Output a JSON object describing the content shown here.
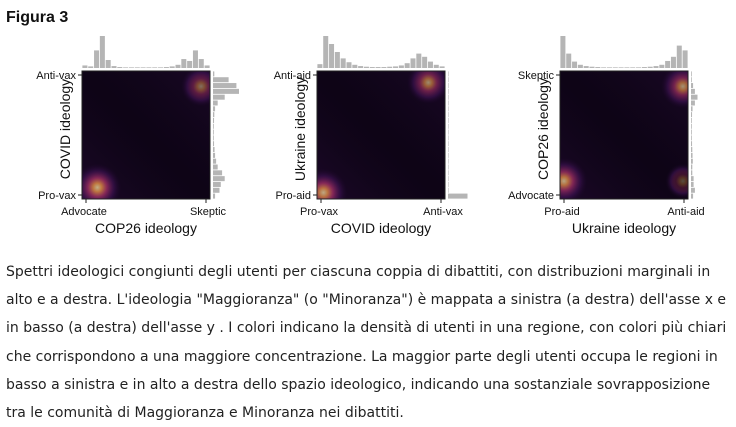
{
  "figure": {
    "title": "Figura 3",
    "caption_lines": [
      "Spettri ideologici congiunti degli utenti per ciascuna coppia di dibattiti, con distribuzioni marginali in",
      "alto e a destra. L'ideologia \"Maggioranza\" (o \"Minoranza\") è mappata a sinistra (a destra) dell'asse x e",
      "in basso (a destra) dell'asse y . I colori indicano la densità di utenti in una regione, con colori più chiari",
      "che corrispondono a una maggiore concentrazione. La maggior parte degli utenti occupa le regioni in",
      "basso a sinistra e in alto a destra dello spazio ideologico, indicando una sostanziale sovrapposizione",
      "tra le comunità di Maggioranza e Minoranza nei dibattiti."
    ]
  },
  "chart_data": [
    {
      "type": "heatmap",
      "xlabel": "COP26 ideology",
      "ylabel": "COVID ideology",
      "x_ticks": [
        "Advocate",
        "Skeptic"
      ],
      "y_ticks": [
        "Pro-vax",
        "Anti-vax"
      ],
      "xlim": [
        0,
        1
      ],
      "ylim": [
        0,
        1
      ],
      "hotspots": [
        {
          "x": 0.12,
          "y": 0.09,
          "intensity": 1.0
        },
        {
          "x": 0.93,
          "y": 0.88,
          "intensity": 0.6
        }
      ],
      "marginal_top": [
        0.08,
        0.05,
        0.55,
        1.0,
        0.25,
        0.06,
        0.03,
        0.02,
        0.02,
        0.02,
        0.02,
        0.02,
        0.02,
        0.02,
        0.03,
        0.05,
        0.1,
        0.28,
        0.22,
        0.55,
        0.28,
        0.08
      ],
      "marginal_right": [
        0.05,
        0.6,
        0.9,
        1.0,
        0.45,
        0.18,
        0.08,
        0.05,
        0.04,
        0.03,
        0.03,
        0.03,
        0.04,
        0.06,
        0.08,
        0.12,
        0.18,
        0.35,
        0.45,
        0.3,
        0.25,
        0.08
      ]
    },
    {
      "type": "heatmap",
      "xlabel": "COVID ideology",
      "ylabel": "Ukraine ideology",
      "x_ticks": [
        "Pro-vax",
        "Anti-vax"
      ],
      "y_ticks": [
        "Pro-aid",
        "Anti-aid"
      ],
      "xlim": [
        0,
        1
      ],
      "ylim": [
        0,
        1
      ],
      "hotspots": [
        {
          "x": 0.05,
          "y": 0.05,
          "intensity": 1.0
        },
        {
          "x": 0.87,
          "y": 0.91,
          "intensity": 0.75
        }
      ],
      "marginal_top": [
        0.12,
        1.0,
        0.75,
        0.5,
        0.3,
        0.18,
        0.1,
        0.06,
        0.04,
        0.03,
        0.03,
        0.03,
        0.04,
        0.05,
        0.08,
        0.15,
        0.3,
        0.45,
        0.35,
        0.2,
        0.1,
        0.05
      ],
      "marginal_right": [
        0.02,
        0.02,
        0.02,
        0.02,
        0.02,
        0.02,
        0.02,
        0.02,
        0.02,
        0.02,
        0.02,
        0.02,
        0.02,
        0.02,
        0.02,
        0.02,
        0.02,
        0.02,
        0.02,
        0.02,
        0.02,
        0.75
      ]
    },
    {
      "type": "heatmap",
      "xlabel": "Ukraine ideology",
      "ylabel": "COP26 ideology",
      "x_ticks": [
        "Pro-aid",
        "Anti-aid"
      ],
      "y_ticks": [
        "Advocate",
        "Skeptic"
      ],
      "xlim": [
        0,
        1
      ],
      "ylim": [
        0,
        1
      ],
      "hotspots": [
        {
          "x": 0.03,
          "y": 0.14,
          "intensity": 0.95
        },
        {
          "x": 0.96,
          "y": 0.88,
          "intensity": 0.8
        },
        {
          "x": 0.96,
          "y": 0.14,
          "intensity": 0.35
        }
      ],
      "marginal_top": [
        1.0,
        0.45,
        0.2,
        0.1,
        0.06,
        0.04,
        0.03,
        0.02,
        0.02,
        0.02,
        0.02,
        0.02,
        0.02,
        0.02,
        0.03,
        0.04,
        0.06,
        0.1,
        0.22,
        0.35,
        0.7,
        0.55
      ],
      "marginal_right": [
        0.03,
        0.03,
        0.08,
        0.15,
        0.25,
        0.15,
        0.06,
        0.04,
        0.03,
        0.03,
        0.03,
        0.03,
        0.04,
        0.05,
        0.06,
        0.07,
        0.05,
        0.05,
        0.1,
        0.1,
        0.15,
        0.08
      ]
    }
  ]
}
